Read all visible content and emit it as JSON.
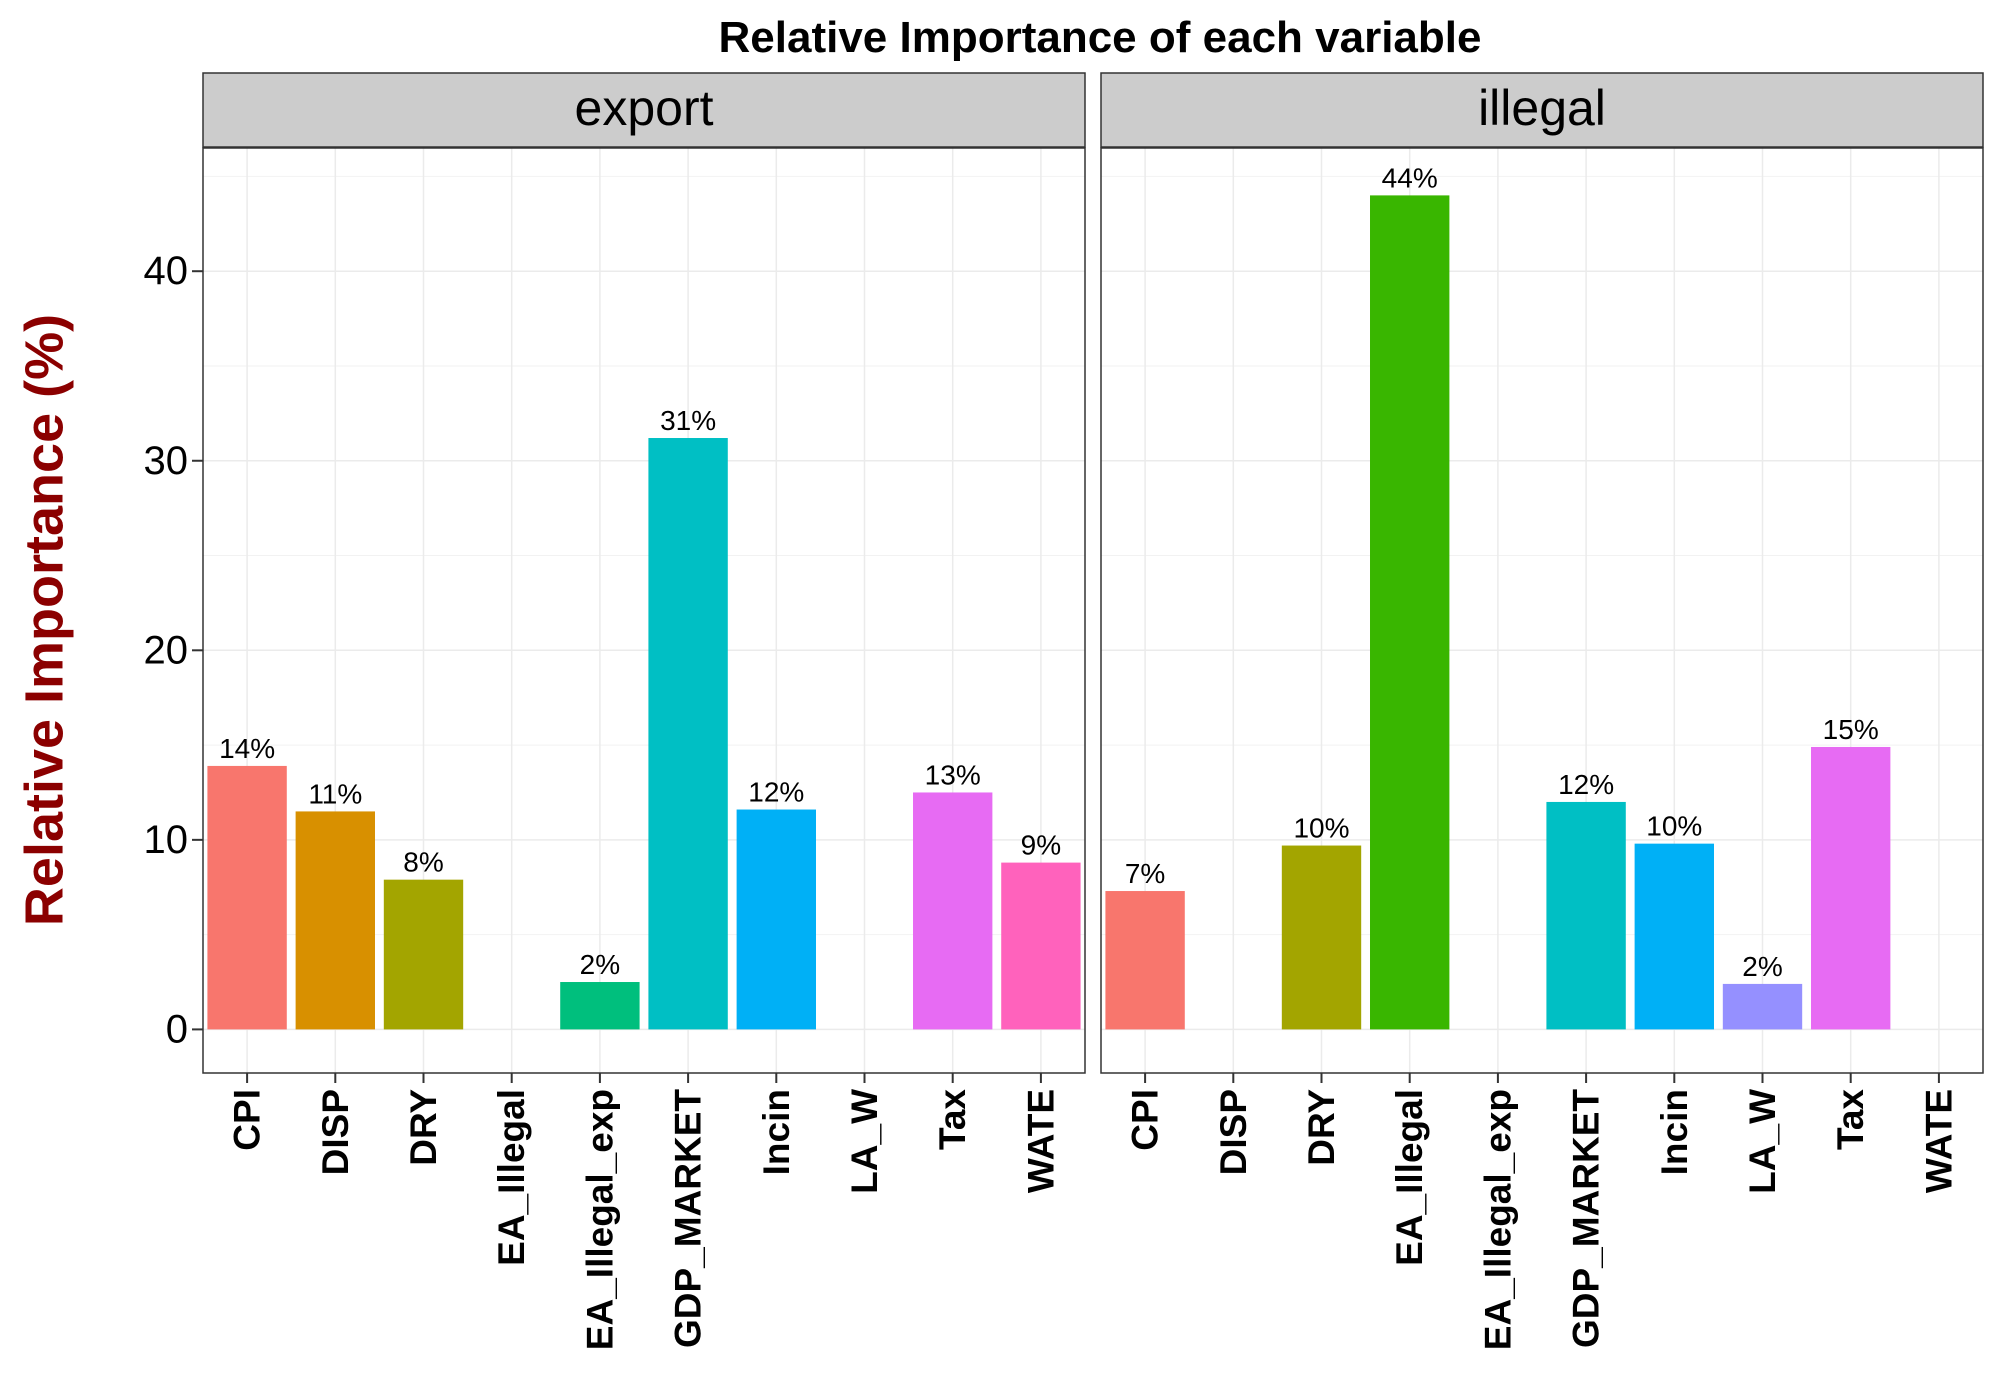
{
  "chart_data": {
    "type": "bar",
    "title": "Relative Importance of each variable",
    "ylabel": "Relative Importance (%)",
    "xlabel": "",
    "ylim": [
      -2.3,
      46.5
    ],
    "yticks": [
      0,
      10,
      20,
      30,
      40
    ],
    "grid": true,
    "legend": "none",
    "categories": [
      "CPI",
      "DISP",
      "DRY",
      "EA_Illegal",
      "EA_Illegal_exp",
      "GDP_MARKET",
      "Incin",
      "LA_W",
      "Tax",
      "WATE"
    ],
    "colors": [
      "#F8766D",
      "#D89000",
      "#A3A500",
      "#39B600",
      "#00BF7D",
      "#00BFC4",
      "#00B0F6",
      "#9590FF",
      "#E76BF3",
      "#FF62BC"
    ],
    "panels": [
      {
        "name": "export",
        "values": [
          13.9,
          11.5,
          7.9,
          null,
          2.5,
          31.2,
          11.6,
          null,
          12.5,
          8.8
        ],
        "labels": [
          "14%",
          "11%",
          "8%",
          "",
          "2%",
          "31%",
          "12%",
          "",
          "13%",
          "9%"
        ]
      },
      {
        "name": "illegal",
        "values": [
          7.3,
          null,
          9.7,
          44.0,
          null,
          12.0,
          9.8,
          2.4,
          14.9,
          null
        ],
        "labels": [
          "7%",
          "",
          "10%",
          "44%",
          "",
          "12%",
          "10%",
          "2%",
          "15%",
          ""
        ]
      }
    ]
  }
}
